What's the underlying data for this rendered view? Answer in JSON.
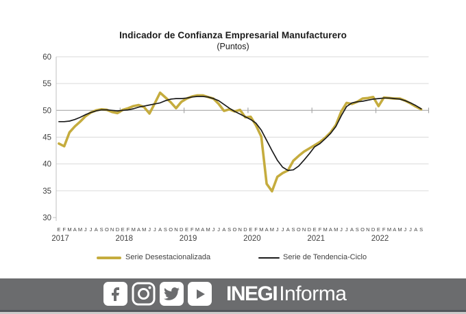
{
  "chart_data": {
    "type": "line",
    "title": "Indicador de Confianza Empresarial Manufacturero",
    "subtitle": "(Puntos)",
    "ylabel": "",
    "xlabel": "",
    "ylim": [
      30,
      60
    ],
    "ytick_step": 5,
    "grid": "horizontal",
    "legend_position": "bottom",
    "axis_cross_value": 50,
    "month_letters": [
      "E",
      "F",
      "M",
      "A",
      "M",
      "J",
      "J",
      "A",
      "S",
      "O",
      "N",
      "D"
    ],
    "years": [
      "2017",
      "2018",
      "2019",
      "2020",
      "2021",
      "2022"
    ],
    "months_in_last_year": 9,
    "series": [
      {
        "name": "Serie Desestacionalizada",
        "color": "#C5AC3E",
        "values": [
          43.8,
          43.3,
          45.9,
          47.0,
          47.9,
          48.9,
          49.6,
          50.0,
          50.2,
          50.1,
          49.7,
          49.5,
          50.1,
          50.4,
          50.8,
          51.0,
          50.6,
          49.4,
          51.3,
          53.3,
          52.4,
          51.5,
          50.4,
          51.6,
          52.2,
          52.6,
          52.8,
          52.8,
          52.5,
          52.2,
          51.2,
          49.9,
          50.2,
          49.8,
          50.1,
          48.7,
          48.8,
          47.2,
          45.1,
          36.3,
          34.9,
          37.6,
          38.3,
          38.8,
          40.6,
          41.5,
          42.3,
          42.9,
          43.5,
          44.1,
          44.9,
          45.9,
          47.3,
          49.8,
          51.4,
          51.2,
          51.6,
          52.2,
          52.3,
          52.5,
          50.8,
          52.4,
          52.3,
          52.2,
          52.2,
          51.8,
          51.3,
          50.7,
          50.2
        ]
      },
      {
        "name": "Serie de Tendencia-Ciclo",
        "color": "#1A1A1A",
        "values": [
          47.9,
          47.9,
          48.0,
          48.3,
          48.7,
          49.2,
          49.6,
          49.9,
          50.1,
          50.1,
          50.0,
          49.9,
          50.0,
          50.1,
          50.3,
          50.6,
          50.8,
          51.0,
          51.2,
          51.4,
          51.8,
          52.1,
          52.2,
          52.2,
          52.3,
          52.5,
          52.6,
          52.6,
          52.5,
          52.2,
          51.8,
          51.1,
          50.4,
          49.8,
          49.3,
          48.8,
          48.3,
          47.6,
          46.3,
          44.4,
          42.5,
          40.7,
          39.4,
          38.8,
          38.9,
          39.6,
          40.7,
          41.9,
          43.2,
          43.8,
          44.7,
          45.7,
          47.0,
          49.0,
          50.7,
          51.4,
          51.6,
          51.7,
          51.9,
          52.1,
          52.2,
          52.3,
          52.3,
          52.2,
          52.1,
          51.8,
          51.4,
          50.9,
          50.3
        ]
      }
    ],
    "colors": {
      "gridline": "#DADADA",
      "axis_line": "#A8A8A8",
      "y_axis_line": "#C0C0C0",
      "tick_label": "#404040"
    }
  },
  "footer": {
    "bar_color": "#6B6C6E",
    "icons": [
      "facebook-icon",
      "instagram-icon",
      "twitter-icon",
      "youtube-icon"
    ],
    "brand_bold": "INEGI",
    "brand_regular": "Informa"
  }
}
